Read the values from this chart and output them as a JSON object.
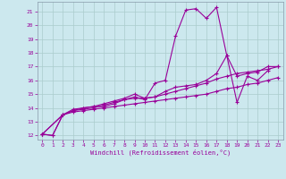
{
  "xlabel": "Windchill (Refroidissement éolien,°C)",
  "bg_color": "#cce8ee",
  "line_color": "#990099",
  "grid_color": "#aacccc",
  "xlim": [
    -0.5,
    23.5
  ],
  "ylim": [
    11.7,
    21.7
  ],
  "yticks": [
    12,
    13,
    14,
    15,
    16,
    17,
    18,
    19,
    20,
    21
  ],
  "xticks": [
    0,
    1,
    2,
    3,
    4,
    5,
    6,
    7,
    8,
    9,
    10,
    11,
    12,
    13,
    14,
    15,
    16,
    17,
    18,
    19,
    20,
    21,
    22,
    23
  ],
  "line1_x": [
    0,
    1,
    2,
    3,
    4,
    5,
    6,
    7,
    8,
    9,
    10,
    11,
    12,
    13,
    14,
    15,
    16,
    17,
    18,
    19,
    20,
    21,
    22
  ],
  "line1_y": [
    12.1,
    12.0,
    13.5,
    13.8,
    14.0,
    14.1,
    14.1,
    14.3,
    14.6,
    14.8,
    14.6,
    15.8,
    16.0,
    19.2,
    21.1,
    21.2,
    20.5,
    21.3,
    17.8,
    14.4,
    16.3,
    16.0,
    16.7
  ],
  "line2_x": [
    0,
    1,
    2,
    3,
    4,
    5,
    6,
    7,
    8,
    9,
    10,
    11,
    12,
    13,
    14,
    15,
    16,
    17,
    18,
    19,
    20,
    21,
    22,
    23
  ],
  "line2_y": [
    12.1,
    12.0,
    13.5,
    13.9,
    14.0,
    14.1,
    14.3,
    14.5,
    14.7,
    15.0,
    14.7,
    14.8,
    15.2,
    15.5,
    15.6,
    15.7,
    16.0,
    16.5,
    17.8,
    16.3,
    16.5,
    16.6,
    17.0,
    17.0
  ],
  "line3_x": [
    0,
    2,
    3,
    4,
    5,
    6,
    7,
    8,
    9,
    10,
    11,
    12,
    13,
    14,
    15,
    16,
    17,
    18,
    19,
    20,
    21,
    22,
    23
  ],
  "line3_y": [
    12.1,
    13.5,
    13.8,
    13.9,
    14.0,
    14.2,
    14.4,
    14.6,
    14.7,
    14.7,
    14.8,
    15.0,
    15.2,
    15.4,
    15.6,
    15.8,
    16.1,
    16.3,
    16.5,
    16.6,
    16.7,
    16.8,
    17.0
  ],
  "line4_x": [
    0,
    2,
    3,
    4,
    5,
    6,
    7,
    8,
    9,
    10,
    11,
    12,
    13,
    14,
    15,
    16,
    17,
    18,
    19,
    20,
    21,
    22,
    23
  ],
  "line4_y": [
    12.1,
    13.5,
    13.7,
    13.8,
    13.9,
    14.0,
    14.1,
    14.2,
    14.3,
    14.4,
    14.5,
    14.6,
    14.7,
    14.8,
    14.9,
    15.0,
    15.2,
    15.4,
    15.5,
    15.7,
    15.8,
    16.0,
    16.2
  ]
}
